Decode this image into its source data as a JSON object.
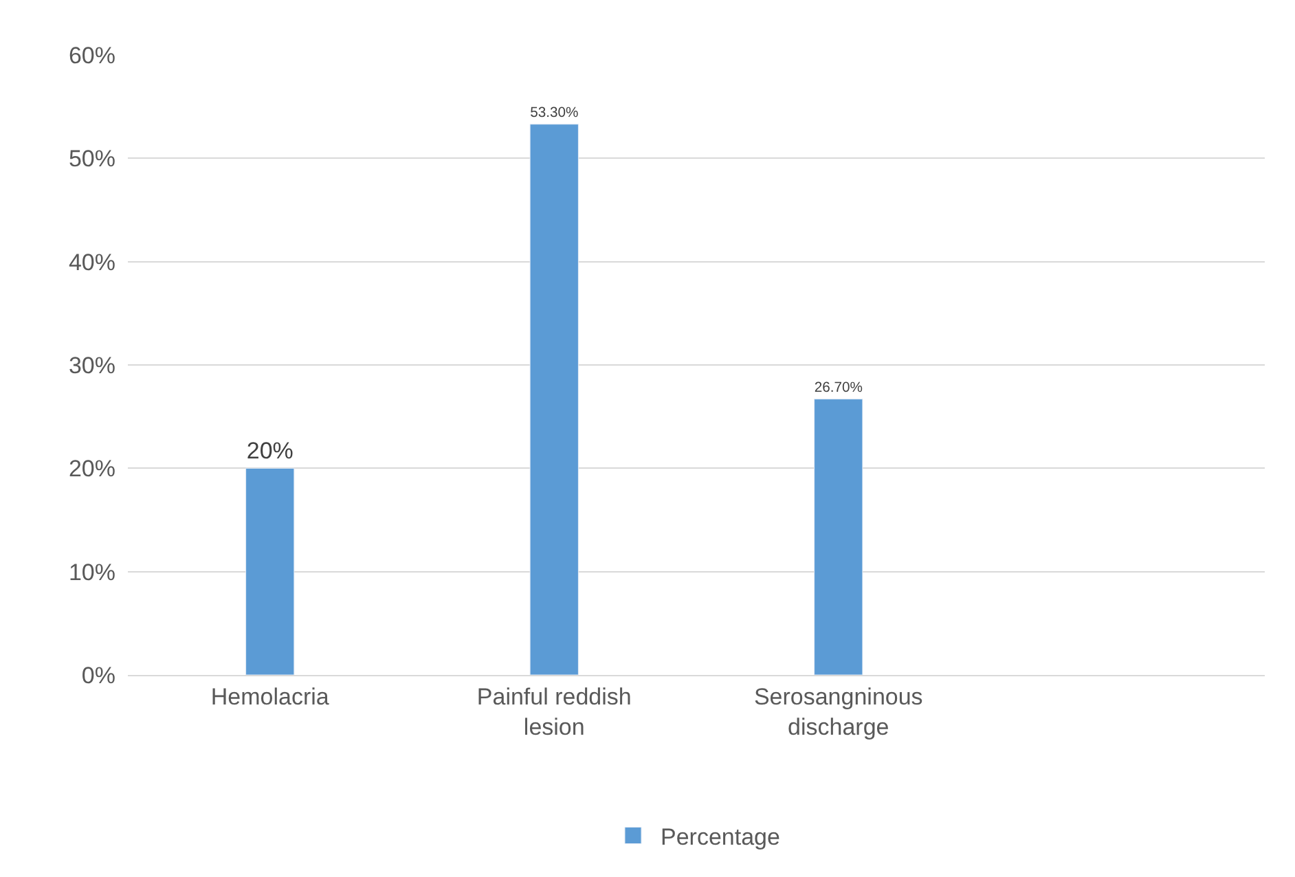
{
  "chart_data": {
    "type": "bar",
    "categories": [
      "Hemolacria",
      "Painful reddish lesion",
      "Serosangninous discharge",
      null
    ],
    "series": [
      {
        "name": "Percentage",
        "color": "#5b9bd5",
        "values": [
          20,
          53.3,
          26.7,
          null
        ],
        "value_labels": [
          "20%",
          "53.30%",
          "26.70%",
          null
        ]
      }
    ],
    "ylim": [
      0,
      60
    ],
    "yticks": [
      {
        "value": 0,
        "label": "0%"
      },
      {
        "value": 10,
        "label": "10%"
      },
      {
        "value": 20,
        "label": "20%"
      },
      {
        "value": 30,
        "label": "30%"
      },
      {
        "value": 40,
        "label": "40%"
      },
      {
        "value": 50,
        "label": "50%"
      },
      {
        "value": 60,
        "label": "60%"
      }
    ],
    "grid": "y",
    "legend": "bottom"
  }
}
